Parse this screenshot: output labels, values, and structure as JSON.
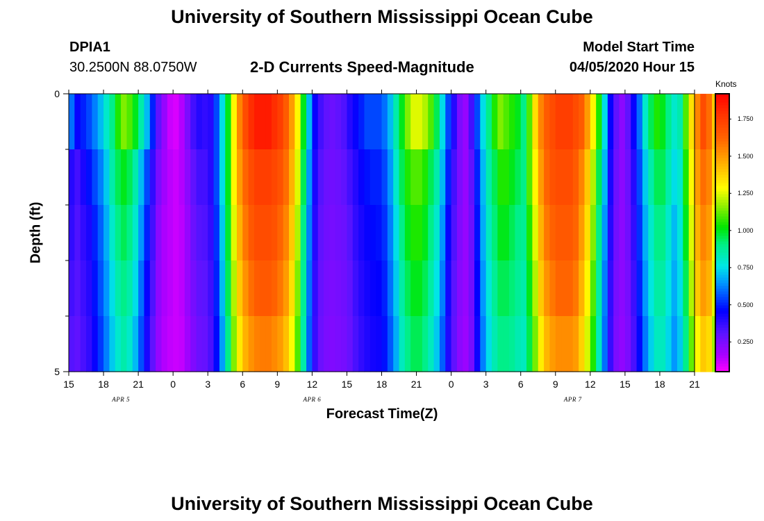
{
  "page": {
    "title": "University of Southern Mississippi Ocean Cube",
    "footer_title": "University of Southern Mississippi Ocean Cube"
  },
  "station": {
    "id": "DPIA1",
    "coords": "30.2500N 88.0750W"
  },
  "model": {
    "start_label": "Model Start Time",
    "start_value": "04/05/2020 Hour 15"
  },
  "chart_data": {
    "type": "heatmap",
    "title": "2-D Currents Speed-Magnitude",
    "xlabel": "Forecast Time(Z)",
    "ylabel": "Depth (ft)",
    "colorbar": {
      "label": "Knots",
      "range": [
        0.05,
        1.92
      ],
      "ticks": [
        "0.250",
        "0.500",
        "0.750",
        "1.000",
        "1.250",
        "1.500",
        "1.750"
      ],
      "tick_values": [
        0.25,
        0.5,
        0.75,
        1.0,
        1.25,
        1.5,
        1.75
      ]
    },
    "x_tick_labels": [
      "15",
      "18",
      "21",
      "0",
      "3",
      "6",
      "9",
      "12",
      "15",
      "18",
      "21",
      "0",
      "3",
      "6",
      "9",
      "12",
      "15",
      "18",
      "21"
    ],
    "x_hours": [
      0,
      3,
      6,
      9,
      12,
      15,
      18,
      21,
      24,
      27,
      30,
      33,
      36,
      39,
      42,
      45,
      48,
      51,
      54
    ],
    "x_range_hours": [
      0,
      54
    ],
    "date_labels": [
      {
        "text": "APR 5",
        "hour": 4.5
      },
      {
        "text": "APR 6",
        "hour": 21
      },
      {
        "text": "APR 7",
        "hour": 43.5
      }
    ],
    "y_tick_labels": [
      "0",
      "5"
    ],
    "y_range": [
      0,
      5
    ],
    "depth_levels": [
      "0.5",
      "1.5",
      "2.5",
      "3.5",
      "4.5"
    ],
    "time_step_hours": 0.5,
    "speed_knots_by_depth": [
      [
        0.6,
        0.45,
        0.5,
        0.55,
        0.62,
        0.7,
        0.8,
        0.9,
        1.05,
        1.15,
        1.1,
        1.0,
        0.85,
        0.7,
        0.5,
        0.3,
        0.2,
        0.12,
        0.1,
        0.15,
        0.25,
        0.35,
        0.4,
        0.38,
        0.4,
        0.55,
        0.75,
        1.0,
        1.3,
        1.55,
        1.7,
        1.8,
        1.85,
        1.85,
        1.85,
        1.8,
        1.75,
        1.65,
        1.5,
        1.3,
        1.0,
        0.7,
        0.45,
        0.35,
        0.3,
        0.28,
        0.3,
        0.33,
        0.4,
        0.45,
        0.5,
        0.55,
        0.55,
        0.55,
        0.6,
        0.7,
        0.85,
        1.0,
        1.15,
        1.25,
        1.25,
        1.2,
        1.1,
        0.95,
        0.75,
        0.55,
        0.4,
        0.25,
        0.2,
        0.35,
        0.55,
        0.75,
        0.9,
        1.05,
        1.15,
        1.1,
        1.05,
        1.0,
        0.9,
        1.1,
        1.35,
        1.55,
        1.65,
        1.7,
        1.75,
        1.75,
        1.75,
        1.7,
        1.65,
        1.5,
        1.3,
        1.05,
        0.75,
        0.45,
        0.3,
        0.22,
        0.3,
        0.45,
        0.6,
        0.8,
        0.95,
        1.05,
        1.0,
        0.9,
        0.8,
        0.85,
        1.1,
        1.35,
        1.55,
        1.7,
        1.6,
        1.4
      ],
      [
        0.4,
        0.35,
        0.42,
        0.48,
        0.55,
        0.62,
        0.72,
        0.85,
        0.95,
        1.0,
        0.95,
        0.85,
        0.7,
        0.55,
        0.38,
        0.25,
        0.18,
        0.14,
        0.12,
        0.15,
        0.22,
        0.3,
        0.35,
        0.35,
        0.4,
        0.55,
        0.75,
        1.0,
        1.3,
        1.5,
        1.62,
        1.7,
        1.75,
        1.75,
        1.75,
        1.72,
        1.68,
        1.6,
        1.45,
        1.25,
        0.95,
        0.65,
        0.42,
        0.32,
        0.28,
        0.27,
        0.28,
        0.3,
        0.35,
        0.4,
        0.45,
        0.48,
        0.5,
        0.5,
        0.55,
        0.65,
        0.8,
        0.95,
        1.05,
        1.1,
        1.1,
        1.05,
        0.95,
        0.85,
        0.7,
        0.5,
        0.35,
        0.25,
        0.2,
        0.3,
        0.5,
        0.7,
        0.85,
        0.95,
        1.05,
        1.05,
        1.0,
        0.95,
        0.9,
        1.1,
        1.3,
        1.5,
        1.62,
        1.68,
        1.7,
        1.7,
        1.7,
        1.65,
        1.55,
        1.4,
        1.2,
        0.95,
        0.7,
        0.42,
        0.28,
        0.22,
        0.28,
        0.4,
        0.55,
        0.72,
        0.85,
        0.95,
        0.95,
        0.85,
        0.75,
        0.8,
        1.05,
        1.3,
        1.5,
        1.6,
        1.55,
        1.35
      ],
      [
        0.38,
        0.33,
        0.38,
        0.42,
        0.5,
        0.58,
        0.68,
        0.8,
        0.9,
        0.95,
        0.9,
        0.8,
        0.65,
        0.5,
        0.35,
        0.22,
        0.16,
        0.14,
        0.12,
        0.14,
        0.2,
        0.28,
        0.32,
        0.33,
        0.38,
        0.52,
        0.72,
        0.98,
        1.25,
        1.45,
        1.58,
        1.66,
        1.7,
        1.7,
        1.7,
        1.68,
        1.62,
        1.55,
        1.4,
        1.2,
        0.9,
        0.62,
        0.4,
        0.3,
        0.27,
        0.26,
        0.27,
        0.28,
        0.32,
        0.38,
        0.42,
        0.45,
        0.47,
        0.48,
        0.52,
        0.62,
        0.75,
        0.9,
        1.0,
        1.05,
        1.05,
        1.0,
        0.9,
        0.8,
        0.65,
        0.45,
        0.33,
        0.24,
        0.2,
        0.28,
        0.48,
        0.68,
        0.82,
        0.92,
        1.0,
        1.0,
        0.95,
        0.9,
        0.88,
        1.05,
        1.25,
        1.45,
        1.58,
        1.63,
        1.66,
        1.66,
        1.66,
        1.62,
        1.5,
        1.35,
        1.15,
        0.9,
        0.65,
        0.4,
        0.27,
        0.22,
        0.27,
        0.38,
        0.52,
        0.68,
        0.8,
        0.9,
        0.9,
        0.8,
        0.7,
        0.78,
        1.0,
        1.25,
        1.45,
        1.55,
        1.5,
        1.3
      ],
      [
        0.35,
        0.32,
        0.36,
        0.4,
        0.48,
        0.56,
        0.65,
        0.75,
        0.85,
        0.9,
        0.85,
        0.75,
        0.6,
        0.45,
        0.33,
        0.21,
        0.16,
        0.14,
        0.12,
        0.14,
        0.2,
        0.26,
        0.3,
        0.31,
        0.36,
        0.5,
        0.7,
        0.95,
        1.2,
        1.4,
        1.52,
        1.6,
        1.65,
        1.66,
        1.66,
        1.63,
        1.58,
        1.5,
        1.35,
        1.15,
        0.88,
        0.6,
        0.38,
        0.29,
        0.26,
        0.25,
        0.26,
        0.27,
        0.3,
        0.36,
        0.4,
        0.43,
        0.45,
        0.46,
        0.5,
        0.6,
        0.72,
        0.86,
        0.95,
        1.0,
        1.0,
        0.95,
        0.86,
        0.76,
        0.62,
        0.43,
        0.31,
        0.23,
        0.2,
        0.27,
        0.46,
        0.65,
        0.78,
        0.88,
        0.95,
        0.95,
        0.92,
        0.88,
        0.85,
        1.0,
        1.2,
        1.4,
        1.52,
        1.58,
        1.62,
        1.62,
        1.62,
        1.58,
        1.45,
        1.3,
        1.1,
        0.86,
        0.62,
        0.38,
        0.26,
        0.22,
        0.26,
        0.36,
        0.5,
        0.65,
        0.77,
        0.86,
        0.86,
        0.77,
        0.68,
        0.75,
        0.95,
        1.2,
        1.4,
        1.5,
        1.45,
        1.25
      ],
      [
        0.32,
        0.3,
        0.34,
        0.38,
        0.45,
        0.53,
        0.62,
        0.72,
        0.8,
        0.85,
        0.8,
        0.7,
        0.56,
        0.42,
        0.3,
        0.2,
        0.15,
        0.13,
        0.12,
        0.13,
        0.18,
        0.24,
        0.28,
        0.29,
        0.34,
        0.47,
        0.66,
        0.9,
        1.15,
        1.33,
        1.45,
        1.52,
        1.56,
        1.57,
        1.57,
        1.54,
        1.5,
        1.42,
        1.28,
        1.1,
        0.85,
        0.58,
        0.37,
        0.28,
        0.25,
        0.24,
        0.25,
        0.26,
        0.29,
        0.34,
        0.38,
        0.41,
        0.43,
        0.44,
        0.48,
        0.57,
        0.68,
        0.82,
        0.9,
        0.95,
        0.95,
        0.9,
        0.82,
        0.72,
        0.58,
        0.41,
        0.3,
        0.22,
        0.19,
        0.26,
        0.44,
        0.62,
        0.75,
        0.84,
        0.9,
        0.9,
        0.88,
        0.84,
        0.82,
        0.96,
        1.14,
        1.32,
        1.44,
        1.5,
        1.53,
        1.53,
        1.53,
        1.5,
        1.38,
        1.24,
        1.05,
        0.82,
        0.6,
        0.37,
        0.25,
        0.21,
        0.25,
        0.34,
        0.47,
        0.61,
        0.73,
        0.82,
        0.82,
        0.74,
        0.65,
        0.72,
        0.9,
        1.12,
        1.3,
        1.4,
        1.36,
        1.18
      ]
    ]
  }
}
